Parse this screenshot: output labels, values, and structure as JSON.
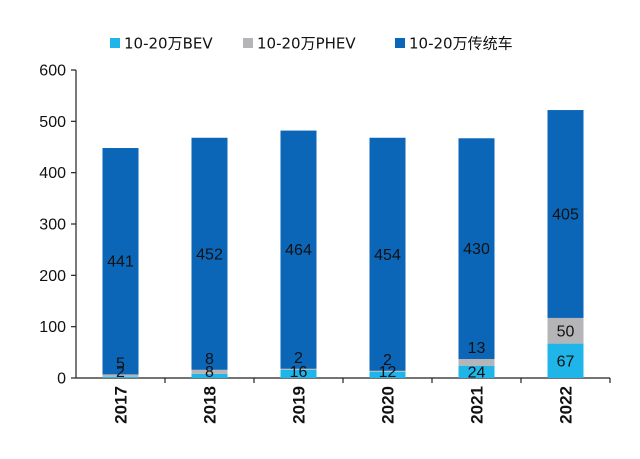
{
  "chart_data": {
    "type": "bar",
    "stacked": true,
    "categories": [
      "2017",
      "2018",
      "2019",
      "2020",
      "2021",
      "2022"
    ],
    "series": [
      {
        "name": "10-20万BEV",
        "color": "#1fb5e8",
        "values": [
          2,
          8,
          16,
          12,
          24,
          67
        ]
      },
      {
        "name": "10-20万PHEV",
        "color": "#b5b5b7",
        "values": [
          5,
          8,
          2,
          2,
          13,
          50
        ]
      },
      {
        "name": "10-20万传统车",
        "color": "#0b66b8",
        "values": [
          441,
          452,
          464,
          454,
          430,
          405
        ]
      }
    ],
    "ylim": [
      0,
      600
    ],
    "yticks": [
      "0",
      "100",
      "200",
      "300",
      "400",
      "500",
      "600"
    ],
    "legend_position": "top",
    "grid": false
  }
}
